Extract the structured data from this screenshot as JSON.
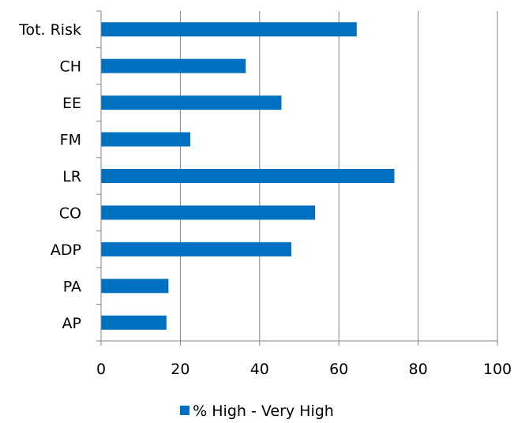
{
  "chart_data": {
    "type": "bar",
    "orientation": "horizontal",
    "categories": [
      "Tot. Risk",
      "CH",
      "EE",
      "FM",
      "LR",
      "CO",
      "ADP",
      "PA",
      "AP"
    ],
    "series": [
      {
        "name": "% High - Very High",
        "values": [
          64.5,
          36.5,
          45.5,
          22.5,
          74.0,
          54.0,
          48.0,
          17.0,
          16.5
        ],
        "color": "#0070C0"
      }
    ],
    "xlim": [
      0,
      100
    ],
    "xticks": [
      0,
      20,
      40,
      60,
      80,
      100
    ],
    "grid": true,
    "legend_position": "bottom"
  }
}
